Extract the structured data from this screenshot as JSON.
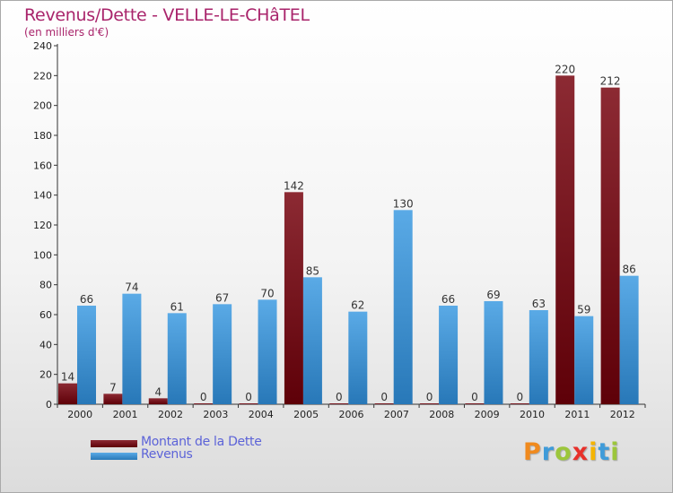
{
  "title": "Revenus/Dette - VELLE-LE-CHâTEL",
  "subtitle": "(en milliers d'€)",
  "brand": {
    "letters": [
      "P",
      "r",
      "o",
      "x",
      "i",
      "t",
      "i"
    ],
    "colors": [
      "#f08a1e",
      "#3f9bd9",
      "#9cc63b",
      "#e8302a",
      "#f5b400",
      "#3f9bd9",
      "#9cc63b"
    ]
  },
  "colors": {
    "dette_dark": "#5e0008",
    "dette_light": "#8c2a33",
    "revenus_dark": "#2878b8",
    "revenus_light": "#5aaae6",
    "title": "#a9246b",
    "legend_text": "#5c63d8"
  },
  "chart_data": {
    "type": "bar",
    "categories": [
      "2000",
      "2001",
      "2002",
      "2003",
      "2004",
      "2005",
      "2006",
      "2007",
      "2008",
      "2009",
      "2010",
      "2011",
      "2012"
    ],
    "series": [
      {
        "name": "Montant de la Dette",
        "values": [
          14,
          7,
          4,
          0,
          0,
          142,
          0,
          0,
          0,
          0,
          0,
          220,
          212
        ]
      },
      {
        "name": "Revenus",
        "values": [
          66,
          74,
          61,
          67,
          70,
          85,
          62,
          130,
          66,
          69,
          63,
          59,
          86
        ]
      }
    ],
    "yticks": [
      0,
      20,
      40,
      60,
      80,
      100,
      120,
      140,
      160,
      180,
      200,
      220,
      240
    ],
    "ylim": [
      0,
      240
    ],
    "grid": false,
    "legend": "bottom-left"
  }
}
